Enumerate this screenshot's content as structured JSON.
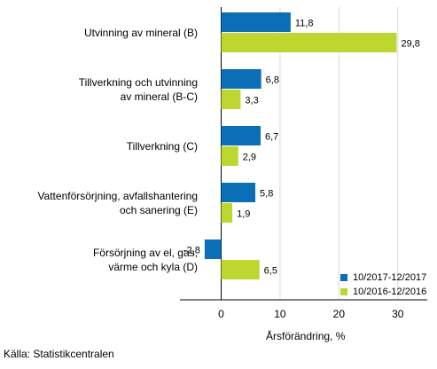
{
  "chart_data": {
    "type": "bar",
    "orientation": "horizontal",
    "categories": [
      "Utvinning av mineral (B)",
      "Tillverkning och utvinning av mineral (B-C)",
      "Tillverkning (C)",
      "Vattenförsörjning, avfallshantering och sanering (E)",
      "Försörjning av el, gas, värme och kyla (D)"
    ],
    "category_lines": [
      [
        "Utvinning av mineral (B)"
      ],
      [
        "Tillverkning och utvinning",
        "av mineral (B-C)"
      ],
      [
        "Tillverkning (C)"
      ],
      [
        "Vattenförsörjning, avfallshantering",
        "och sanering (E)"
      ],
      [
        "Försörjning av el, gas,",
        "värme och kyla (D)"
      ]
    ],
    "series": [
      {
        "name": "10/2017-12/2017",
        "values": [
          11.8,
          6.8,
          6.7,
          5.8,
          -2.8
        ],
        "labels": [
          "11,8",
          "6,8",
          "6,7",
          "5,8",
          "-2,8"
        ],
        "color": "#0b6fb8"
      },
      {
        "name": "10/2016-12/2016",
        "values": [
          29.8,
          3.3,
          2.9,
          1.9,
          6.5
        ],
        "labels": [
          "29,8",
          "3,3",
          "2,9",
          "1,9",
          "6,5"
        ],
        "color": "#bed630"
      }
    ],
    "xlabel": "Årsförändring, %",
    "xlim": [
      -7,
      35
    ],
    "xticks": [
      0,
      10,
      20,
      30
    ],
    "xtick_labels": [
      "0",
      "10",
      "20",
      "30"
    ],
    "grid": true,
    "legend_position": "bottom-right"
  },
  "source": "Källa: Statistikcentralen"
}
